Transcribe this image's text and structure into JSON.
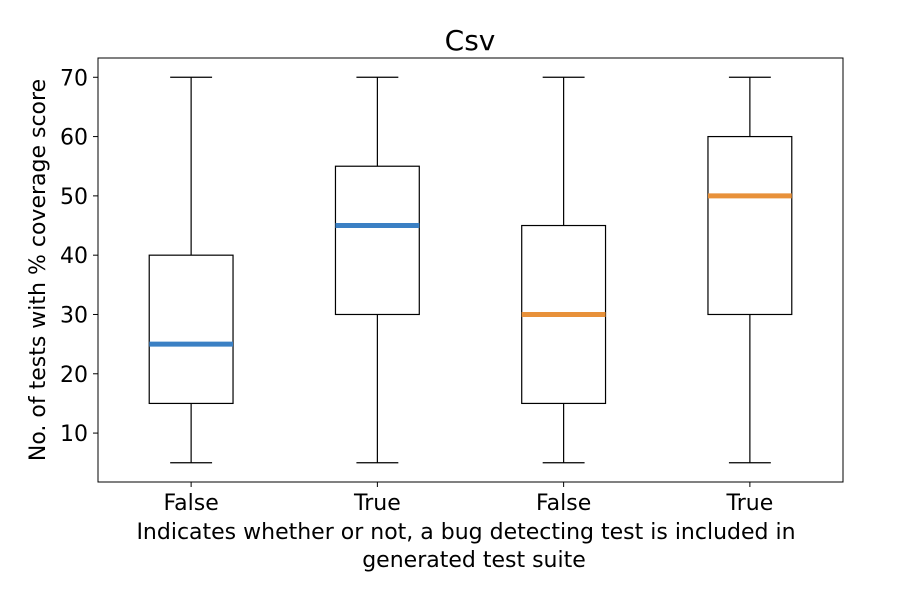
{
  "chart_data": {
    "type": "box",
    "title": "Csv",
    "xlabel_lines": [
      "Indicates whether or not, a bug detecting test is included in",
      "generated test suite"
    ],
    "ylabel": "No. of tests with % coverage score",
    "ylim": [
      1.75,
      73.25
    ],
    "yticks": [
      10,
      20,
      30,
      40,
      50,
      60,
      70
    ],
    "grid": false,
    "boxes": [
      {
        "label": "False",
        "whisker_low": 5,
        "q1": 15,
        "median": 25,
        "q3": 40,
        "whisker_high": 70,
        "median_color": "#3b80c4"
      },
      {
        "label": "True",
        "whisker_low": 5,
        "q1": 30,
        "median": 45,
        "q3": 55,
        "whisker_high": 70,
        "median_color": "#3b80c4"
      },
      {
        "label": "False",
        "whisker_low": 5,
        "q1": 15,
        "median": 30,
        "q3": 45,
        "whisker_high": 70,
        "median_color": "#e8913a"
      },
      {
        "label": "True",
        "whisker_low": 5,
        "q1": 30,
        "median": 50,
        "q3": 60,
        "whisker_high": 70,
        "median_color": "#e8913a"
      }
    ]
  }
}
